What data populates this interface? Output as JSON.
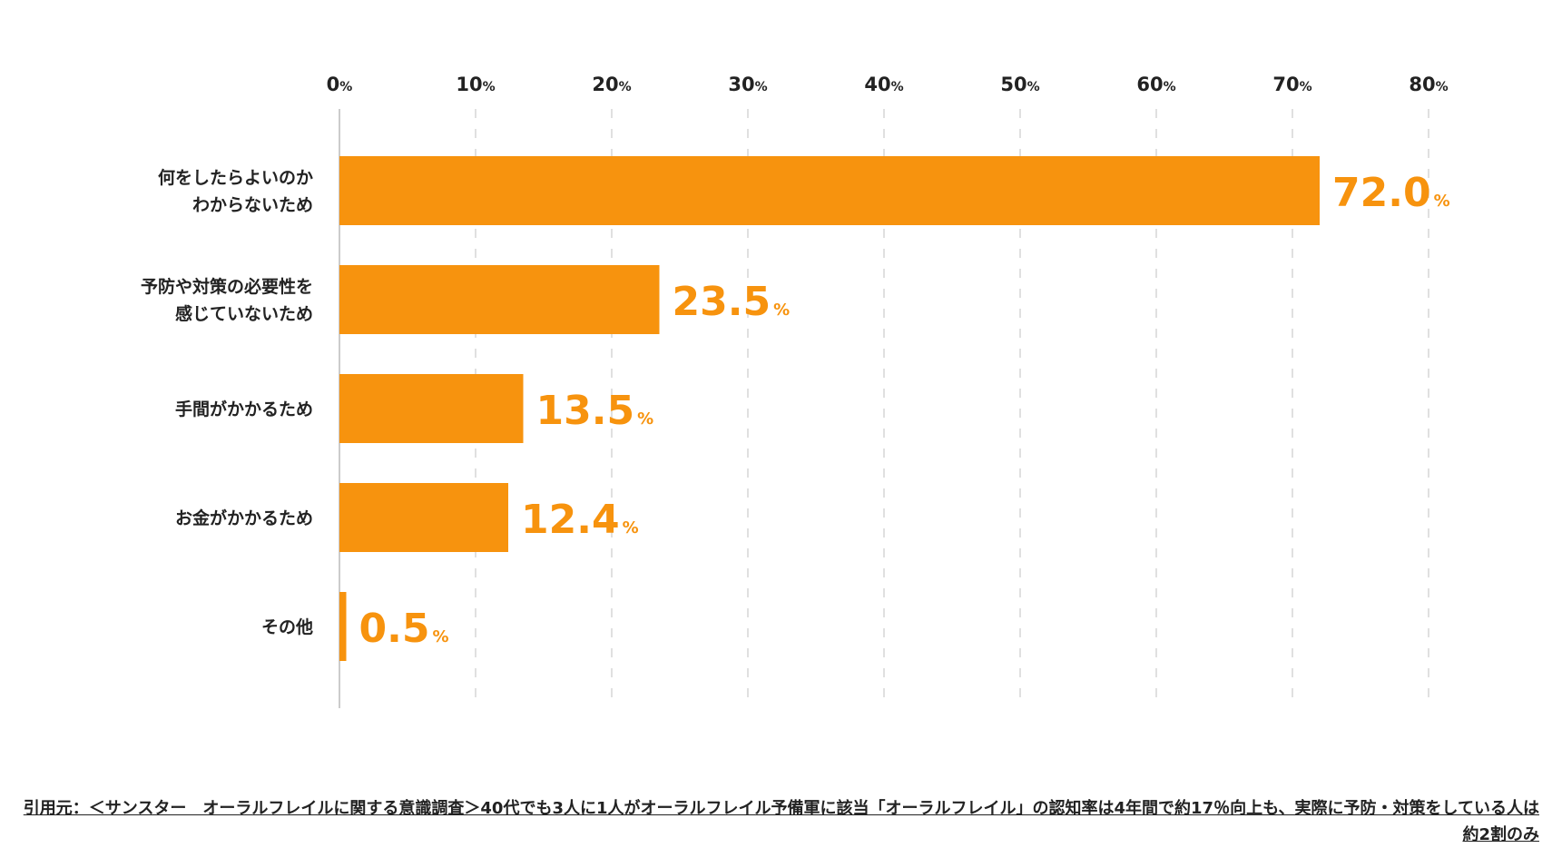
{
  "chart_data": {
    "type": "bar",
    "orientation": "horizontal",
    "categories": [
      [
        "何をしたらよいのか",
        "わからないため"
      ],
      [
        "予防や対策の必要性を",
        "感じていないため"
      ],
      [
        "手間がかかるため"
      ],
      [
        "お金がかかるため"
      ],
      [
        "その他"
      ]
    ],
    "values": [
      72.0,
      23.5,
      13.5,
      12.4,
      0.5
    ],
    "value_labels": [
      "72.0",
      "23.5",
      "13.5",
      "12.4",
      "0.5"
    ],
    "unit": "%",
    "xlim": [
      0,
      80
    ],
    "ticks": [
      "0",
      "10",
      "20",
      "30",
      "40",
      "50",
      "60",
      "70",
      "80"
    ],
    "tick_values": [
      0,
      10,
      20,
      30,
      40,
      50,
      60,
      70,
      80
    ],
    "axis_position": "top",
    "grid": "dashed vertical",
    "bar_color": "#f7930e",
    "grid_color": "#cccccc"
  },
  "footer": {
    "citation": "引用元：＜サンスター　オーラルフレイルに関する意識調査＞40代でも3人に1人がオーラルフレイル予備軍に該当「オーラルフレイル」の認知率は4年間で約17％向上も、実際に予防・対策をしている人は約2割のみ"
  }
}
